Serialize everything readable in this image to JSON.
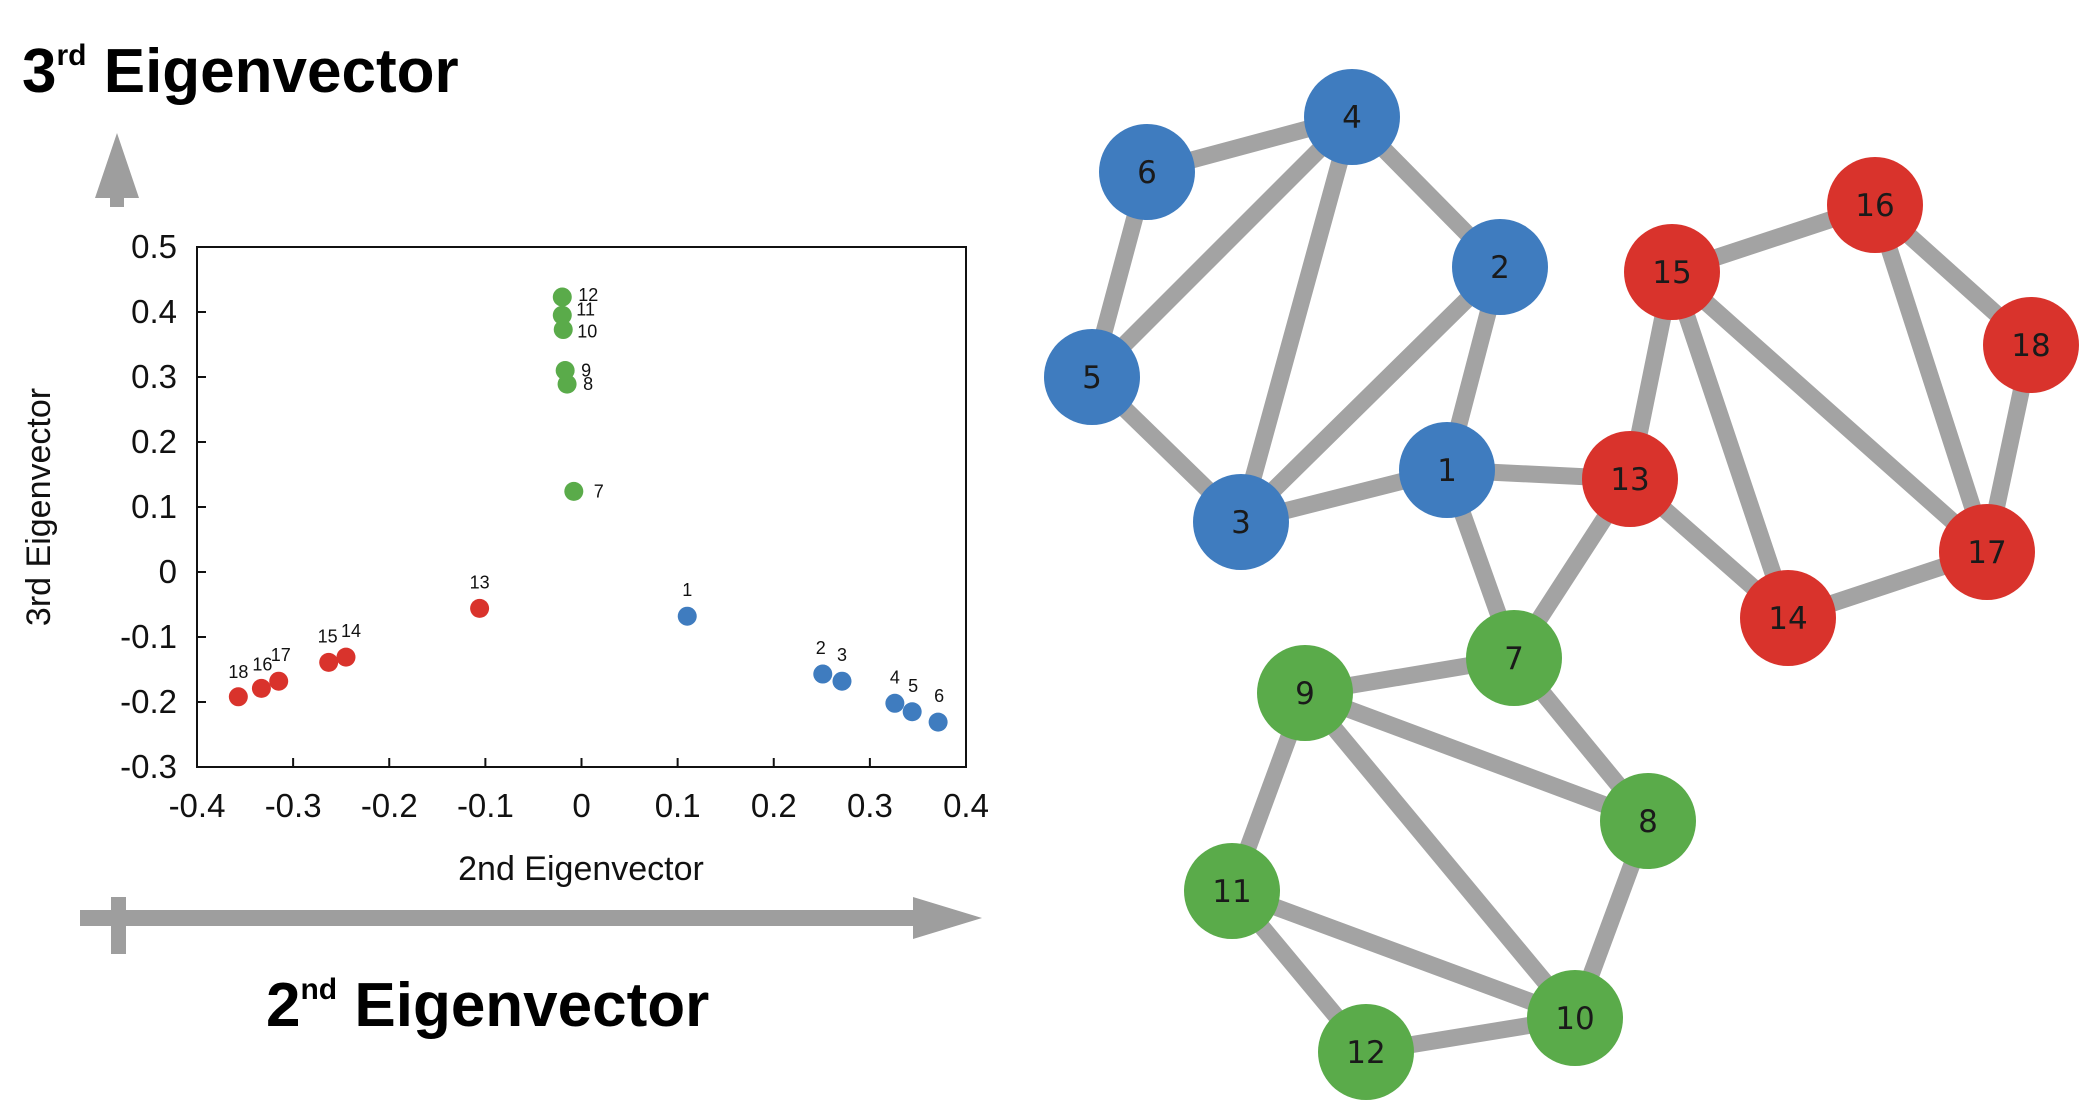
{
  "annotations": {
    "y_big_label": {
      "base": "3",
      "sup": "rd",
      "rest": " Eigenvector"
    },
    "x_big_label": {
      "base": "2",
      "sup": "nd",
      "rest": " Eigenvector"
    }
  },
  "colors": {
    "blue": "#3f7cbf",
    "red": "#d9332c",
    "green": "#5aab4a",
    "edge": "#a3a3a3",
    "arrow": "#9e9e9e"
  },
  "chart_data": [
    {
      "type": "scatter",
      "xlabel": "2nd Eigenvector",
      "ylabel": "3rd Eigenvector",
      "xlim": [
        -0.4,
        0.4
      ],
      "ylim": [
        -0.3,
        0.5
      ],
      "xticks": [
        "-0.4",
        "-0.3",
        "-0.2",
        "-0.1",
        "0",
        "0.1",
        "0.2",
        "0.3",
        "0.4"
      ],
      "yticks": [
        "-0.3",
        "-0.2",
        "-0.1",
        "0",
        "0.1",
        "0.2",
        "0.3",
        "0.4",
        "0.5"
      ],
      "grid": false,
      "points": [
        {
          "label": "1",
          "x": 0.11,
          "y": -0.068,
          "color": "blue"
        },
        {
          "label": "2",
          "x": 0.251,
          "y": -0.157,
          "color": "blue"
        },
        {
          "label": "3",
          "x": 0.271,
          "y": -0.168,
          "color": "blue"
        },
        {
          "label": "4",
          "x": 0.326,
          "y": -0.202,
          "color": "blue"
        },
        {
          "label": "5",
          "x": 0.344,
          "y": -0.215,
          "color": "blue"
        },
        {
          "label": "6",
          "x": 0.371,
          "y": -0.231,
          "color": "blue"
        },
        {
          "label": "7",
          "x": -0.008,
          "y": 0.124,
          "color": "green"
        },
        {
          "label": "8",
          "x": -0.015,
          "y": 0.289,
          "color": "green"
        },
        {
          "label": "9",
          "x": -0.017,
          "y": 0.31,
          "color": "green"
        },
        {
          "label": "10",
          "x": -0.019,
          "y": 0.373,
          "color": "green"
        },
        {
          "label": "11",
          "x": -0.02,
          "y": 0.395,
          "color": "green"
        },
        {
          "label": "12",
          "x": -0.02,
          "y": 0.423,
          "color": "green"
        },
        {
          "label": "13",
          "x": -0.106,
          "y": -0.056,
          "color": "red"
        },
        {
          "label": "14",
          "x": -0.245,
          "y": -0.131,
          "color": "red"
        },
        {
          "label": "15",
          "x": -0.263,
          "y": -0.139,
          "color": "red"
        },
        {
          "label": "16",
          "x": -0.333,
          "y": -0.179,
          "color": "red"
        },
        {
          "label": "17",
          "x": -0.315,
          "y": -0.168,
          "color": "red"
        },
        {
          "label": "18",
          "x": -0.357,
          "y": -0.192,
          "color": "red"
        }
      ]
    },
    {
      "type": "network",
      "nodes": [
        {
          "id": "1",
          "color": "blue"
        },
        {
          "id": "2",
          "color": "blue"
        },
        {
          "id": "3",
          "color": "blue"
        },
        {
          "id": "4",
          "color": "blue"
        },
        {
          "id": "5",
          "color": "blue"
        },
        {
          "id": "6",
          "color": "blue"
        },
        {
          "id": "7",
          "color": "green"
        },
        {
          "id": "8",
          "color": "green"
        },
        {
          "id": "9",
          "color": "green"
        },
        {
          "id": "10",
          "color": "green"
        },
        {
          "id": "11",
          "color": "green"
        },
        {
          "id": "12",
          "color": "green"
        },
        {
          "id": "13",
          "color": "red"
        },
        {
          "id": "14",
          "color": "red"
        },
        {
          "id": "15",
          "color": "red"
        },
        {
          "id": "16",
          "color": "red"
        },
        {
          "id": "17",
          "color": "red"
        },
        {
          "id": "18",
          "color": "red"
        }
      ],
      "edges": [
        [
          "6",
          "4"
        ],
        [
          "6",
          "5"
        ],
        [
          "4",
          "5"
        ],
        [
          "4",
          "3"
        ],
        [
          "4",
          "2"
        ],
        [
          "5",
          "3"
        ],
        [
          "2",
          "3"
        ],
        [
          "2",
          "1"
        ],
        [
          "1",
          "3"
        ],
        [
          "1",
          "13"
        ],
        [
          "1",
          "7"
        ],
        [
          "13",
          "7"
        ],
        [
          "13",
          "15"
        ],
        [
          "13",
          "14"
        ],
        [
          "15",
          "16"
        ],
        [
          "15",
          "14"
        ],
        [
          "15",
          "17"
        ],
        [
          "16",
          "17"
        ],
        [
          "16",
          "18"
        ],
        [
          "18",
          "17"
        ],
        [
          "17",
          "14"
        ],
        [
          "7",
          "9"
        ],
        [
          "7",
          "8"
        ],
        [
          "9",
          "8"
        ],
        [
          "9",
          "11"
        ],
        [
          "9",
          "10"
        ],
        [
          "8",
          "10"
        ],
        [
          "11",
          "10"
        ],
        [
          "11",
          "12"
        ],
        [
          "12",
          "10"
        ]
      ]
    }
  ]
}
